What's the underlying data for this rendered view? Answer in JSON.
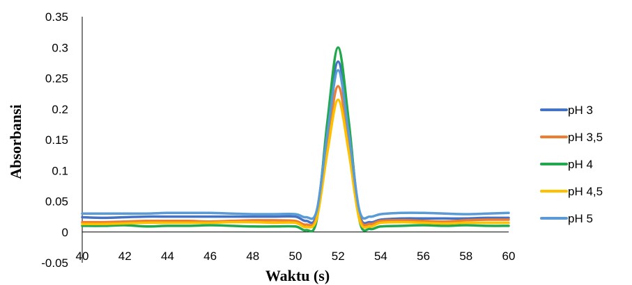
{
  "chart_data": {
    "type": "line",
    "title": "",
    "xlabel": "Waktu (s)",
    "ylabel": "Absorbansi",
    "xlim": [
      40,
      60
    ],
    "ylim": [
      -0.05,
      0.35
    ],
    "x_ticks": [
      "40",
      "42",
      "44",
      "46",
      "48",
      "50",
      "52",
      "54",
      "56",
      "58",
      "60"
    ],
    "y_ticks": [
      "-0.05",
      "0",
      "0.05",
      "0.1",
      "0.15",
      "0.2",
      "0.25",
      "0.3",
      "0.35"
    ],
    "grid": false,
    "legend_position": "right",
    "x": [
      40,
      41,
      42,
      43,
      44,
      45,
      46,
      47,
      48,
      49,
      50,
      50.5,
      51,
      51.5,
      52,
      52.5,
      53,
      53.5,
      54,
      55,
      56,
      57,
      58,
      59,
      60
    ],
    "series": [
      {
        "name": "pH 3",
        "color": "#4472C4",
        "values": [
          0.024,
          0.023,
          0.024,
          0.025,
          0.025,
          0.025,
          0.025,
          0.025,
          0.025,
          0.025,
          0.025,
          0.018,
          0.03,
          0.17,
          0.277,
          0.17,
          0.03,
          0.016,
          0.02,
          0.022,
          0.022,
          0.022,
          0.022,
          0.023,
          0.023
        ]
      },
      {
        "name": "pH 3,5",
        "color": "#ED7D31",
        "values": [
          0.016,
          0.016,
          0.017,
          0.018,
          0.018,
          0.018,
          0.017,
          0.018,
          0.019,
          0.019,
          0.018,
          0.012,
          0.025,
          0.145,
          0.237,
          0.145,
          0.025,
          0.013,
          0.018,
          0.019,
          0.018,
          0.017,
          0.019,
          0.02,
          0.02
        ]
      },
      {
        "name": "pH 4",
        "color": "#21A84E",
        "values": [
          0.01,
          0.01,
          0.011,
          0.009,
          0.01,
          0.01,
          0.011,
          0.01,
          0.009,
          0.009,
          0.009,
          0.003,
          0.02,
          0.18,
          0.3,
          0.18,
          0.02,
          0.005,
          0.009,
          0.01,
          0.011,
          0.01,
          0.011,
          0.01,
          0.01
        ]
      },
      {
        "name": "pH 4,5",
        "color": "#FFC000",
        "values": [
          0.013,
          0.013,
          0.014,
          0.015,
          0.015,
          0.015,
          0.015,
          0.016,
          0.016,
          0.015,
          0.015,
          0.008,
          0.022,
          0.13,
          0.215,
          0.13,
          0.02,
          0.009,
          0.015,
          0.016,
          0.015,
          0.014,
          0.015,
          0.015,
          0.015
        ]
      },
      {
        "name": "pH 5",
        "color": "#5B9BD5",
        "values": [
          0.03,
          0.03,
          0.03,
          0.03,
          0.031,
          0.031,
          0.031,
          0.03,
          0.029,
          0.029,
          0.029,
          0.024,
          0.035,
          0.16,
          0.263,
          0.16,
          0.035,
          0.025,
          0.029,
          0.031,
          0.031,
          0.03,
          0.029,
          0.03,
          0.031
        ]
      }
    ]
  }
}
